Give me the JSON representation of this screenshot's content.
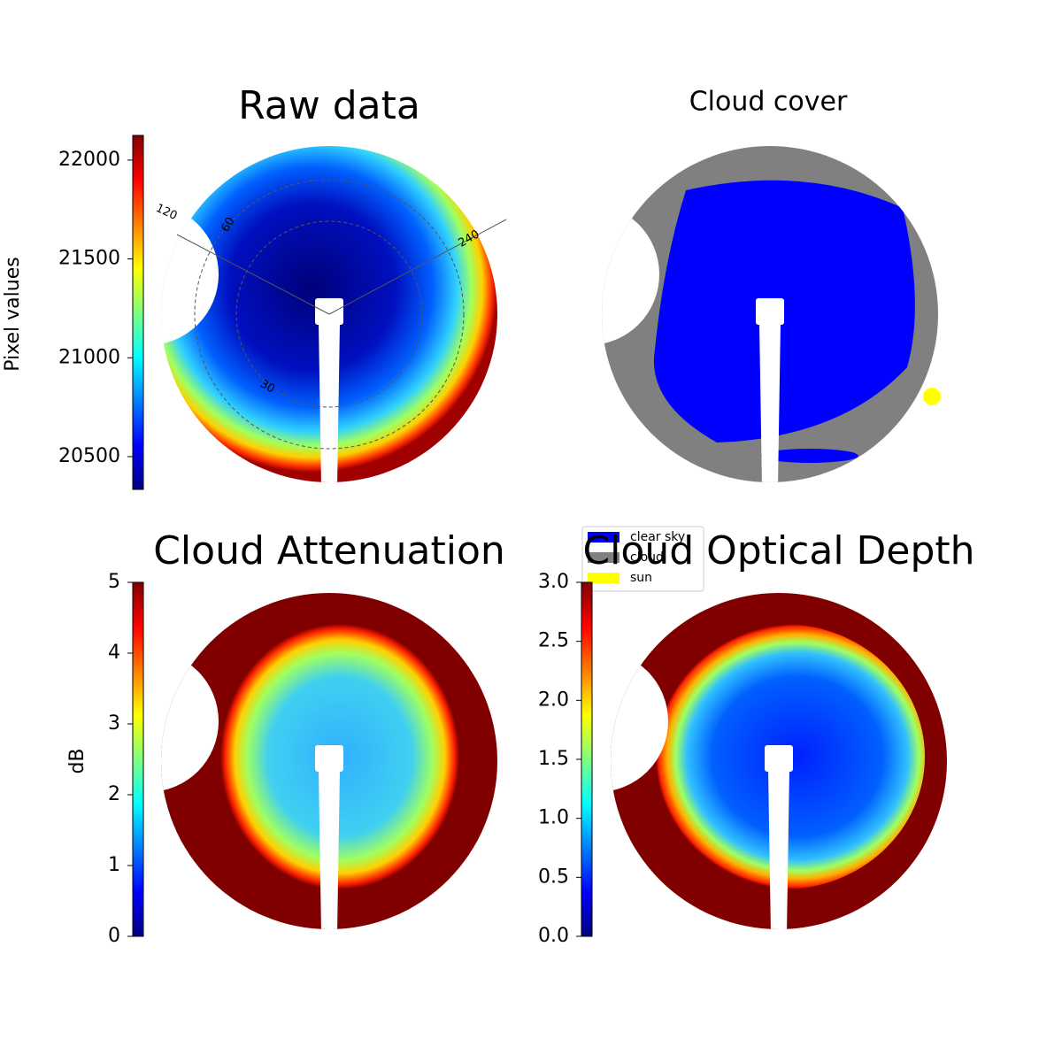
{
  "chart_data": [
    {
      "type": "image",
      "title": "Raw data",
      "colorbar_label": "Pixel values",
      "colormap": "jet",
      "ylim": [
        20334,
        22125
      ],
      "yticks": [
        20500,
        21000,
        21500,
        22000
      ],
      "annotations": [
        "120",
        "240",
        "60",
        "30"
      ]
    },
    {
      "type": "image",
      "title": "Cloud cover",
      "series": [
        {
          "name": "clear sky",
          "color": "#0000ff"
        },
        {
          "name": "cloud",
          "color": "#808080"
        },
        {
          "name": "sun",
          "color": "#ffff00"
        }
      ]
    },
    {
      "type": "image",
      "title": "Cloud Attenuation",
      "colorbar_label": "dB",
      "colormap": "jet",
      "ylim": [
        0,
        5
      ],
      "yticks": [
        0,
        1,
        2,
        3,
        4,
        5
      ]
    },
    {
      "type": "image",
      "title": "Cloud Optical Depth",
      "colormap": "jet",
      "ylim": [
        0,
        3
      ],
      "yticks": [
        {
          "value": 0,
          "label": "0.0"
        },
        {
          "value": 0.5,
          "label": "0.5"
        },
        {
          "value": 1,
          "label": "1.0"
        },
        {
          "value": 1.5,
          "label": "1.5"
        },
        {
          "value": 2,
          "label": "2.0"
        },
        {
          "value": 2.5,
          "label": "2.5"
        },
        {
          "value": 3,
          "label": "3.0"
        }
      ]
    }
  ]
}
